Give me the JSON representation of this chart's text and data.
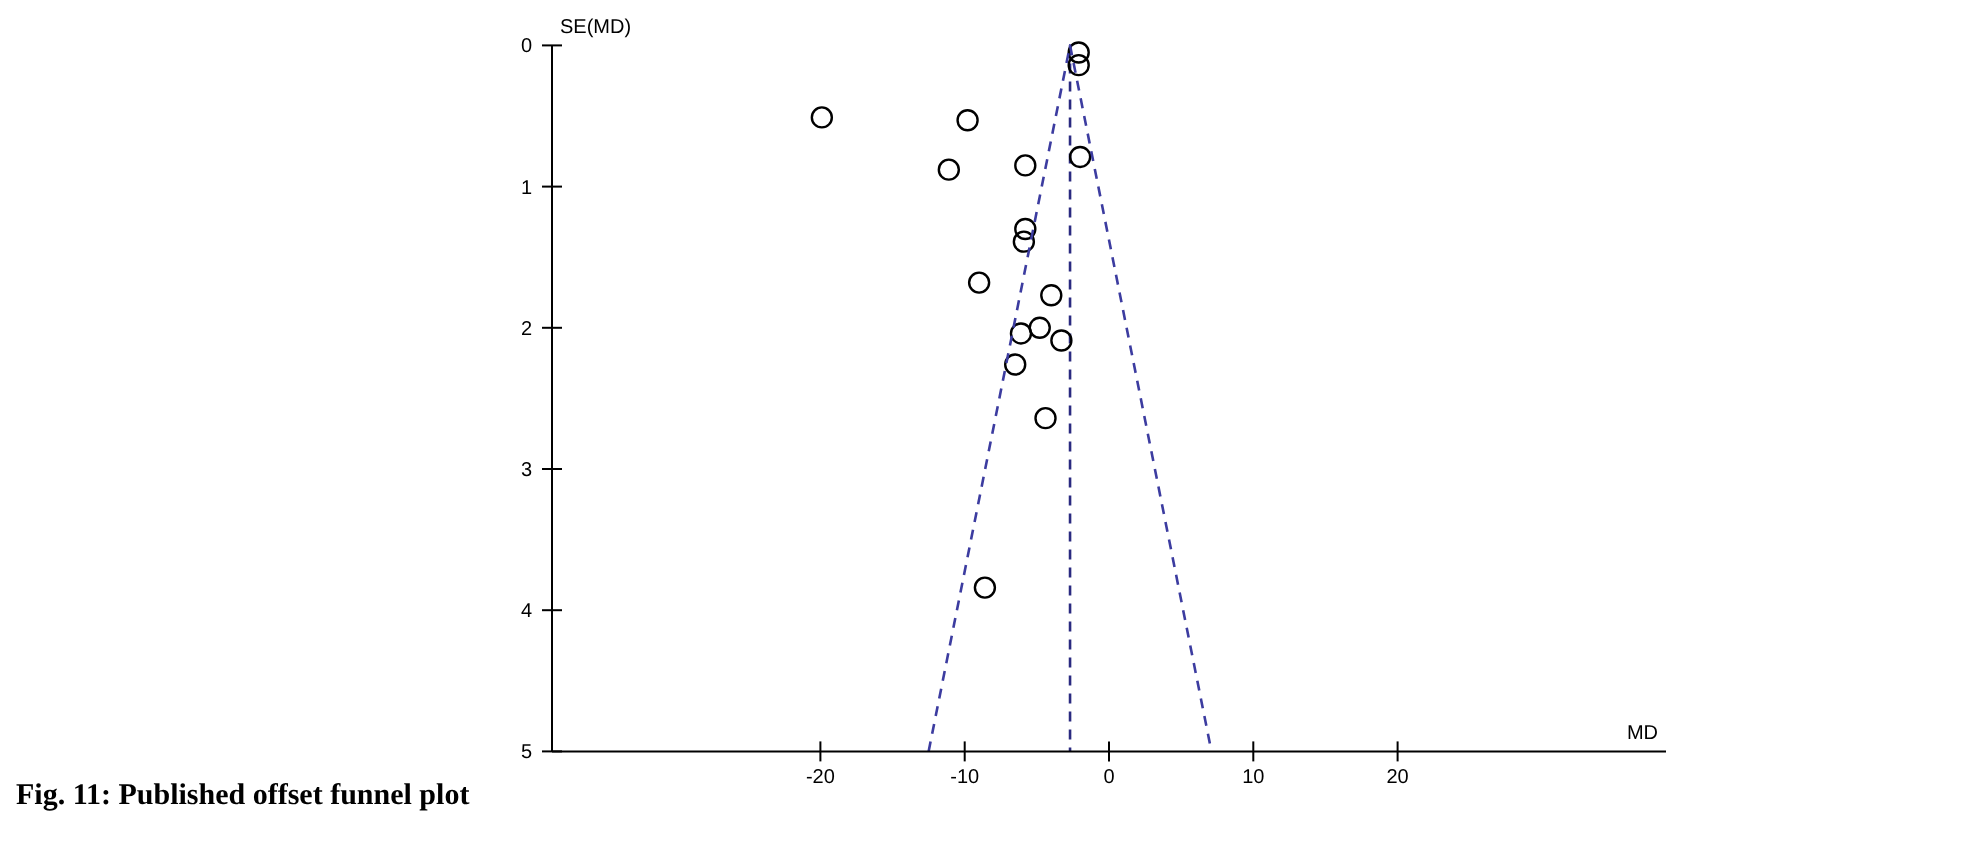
{
  "chart_data": {
    "type": "scatter",
    "xlabel": "MD",
    "ylabel": "SE(MD)",
    "annotations": [
      "Fig. 11: Published offset funnel plot"
    ],
    "xlim": [
      -38.6,
      38.6
    ],
    "xticks": [
      -20,
      -10,
      0,
      10,
      20
    ],
    "ylim": [
      5,
      0
    ],
    "yticks": [
      0,
      1,
      2,
      3,
      4,
      5
    ],
    "grid": false,
    "marker": "circle",
    "series": [
      {
        "color": "#000000",
        "x": [
          -2.1,
          -2.1,
          -19.9,
          -9.8,
          -11.1,
          -5.8,
          -2.0,
          -5.8,
          -5.9,
          -9.0,
          -4.0,
          -6.1,
          -4.8,
          -3.3,
          -6.5,
          -4.4,
          -8.6
        ],
        "values": [
          0.05,
          0.14,
          0.51,
          0.53,
          0.88,
          0.85,
          0.79,
          1.3,
          1.39,
          1.68,
          1.77,
          2.04,
          2.0,
          2.09,
          2.26,
          2.64,
          3.84
        ]
      },
      {
        "type": "line",
        "color": "#3c3ca0",
        "line_style": "dashed",
        "marker": "none",
        "x": [
          -12.5,
          -2.7,
          7.1
        ],
        "values": [
          5,
          0,
          5
        ]
      }
    ],
    "ref_lines": [
      {
        "axis": "x",
        "value": -2.7,
        "color": "#2a2a80",
        "line_style": "dashed"
      }
    ]
  }
}
